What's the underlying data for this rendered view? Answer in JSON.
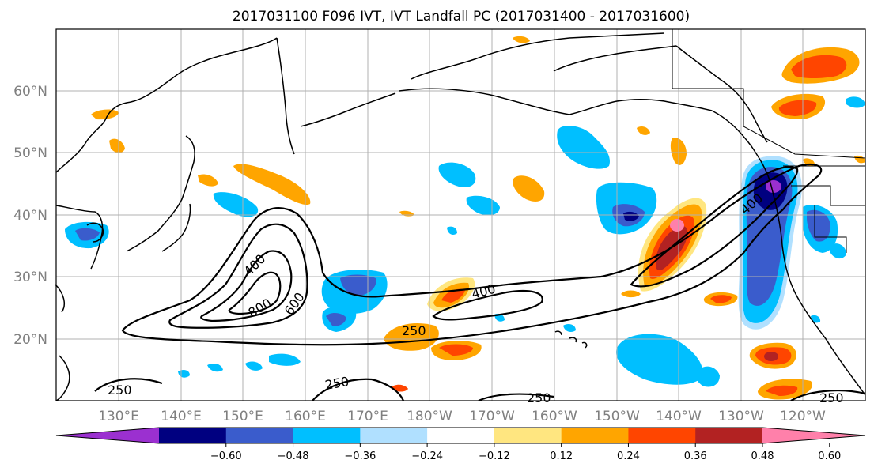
{
  "title": "2017031100 F096 IVT, IVT Landfall PC (2017031400 - 2017031600)",
  "lat_ticks": [
    "20°N",
    "30°N",
    "40°N",
    "50°N",
    "60°N"
  ],
  "lon_ticks": [
    "130°E",
    "140°E",
    "150°E",
    "160°E",
    "170°E",
    "180°W",
    "170°W",
    "160°W",
    "150°W",
    "140°W",
    "130°W",
    "120°W"
  ],
  "colorbar": {
    "tick_labels": [
      "−0.60",
      "−0.48",
      "−0.36",
      "−0.24",
      "−0.12",
      "0.12",
      "0.24",
      "0.36",
      "0.48",
      "0.60"
    ],
    "colors": [
      "#9b30d0",
      "#000080",
      "#3a5ccc",
      "#00bfff",
      "#b0e0ff",
      "#ffffff",
      "#ffe680",
      "#ffa500",
      "#ff4500",
      "#b22222",
      "#ff80aa"
    ]
  },
  "contour_labels": [
    "400",
    "800",
    "600",
    "400",
    "250",
    "400",
    "250",
    "250",
    "250",
    "250"
  ],
  "colors": {
    "grid": "#b0b0b0",
    "coast": "#000000",
    "contour": "#000000"
  }
}
